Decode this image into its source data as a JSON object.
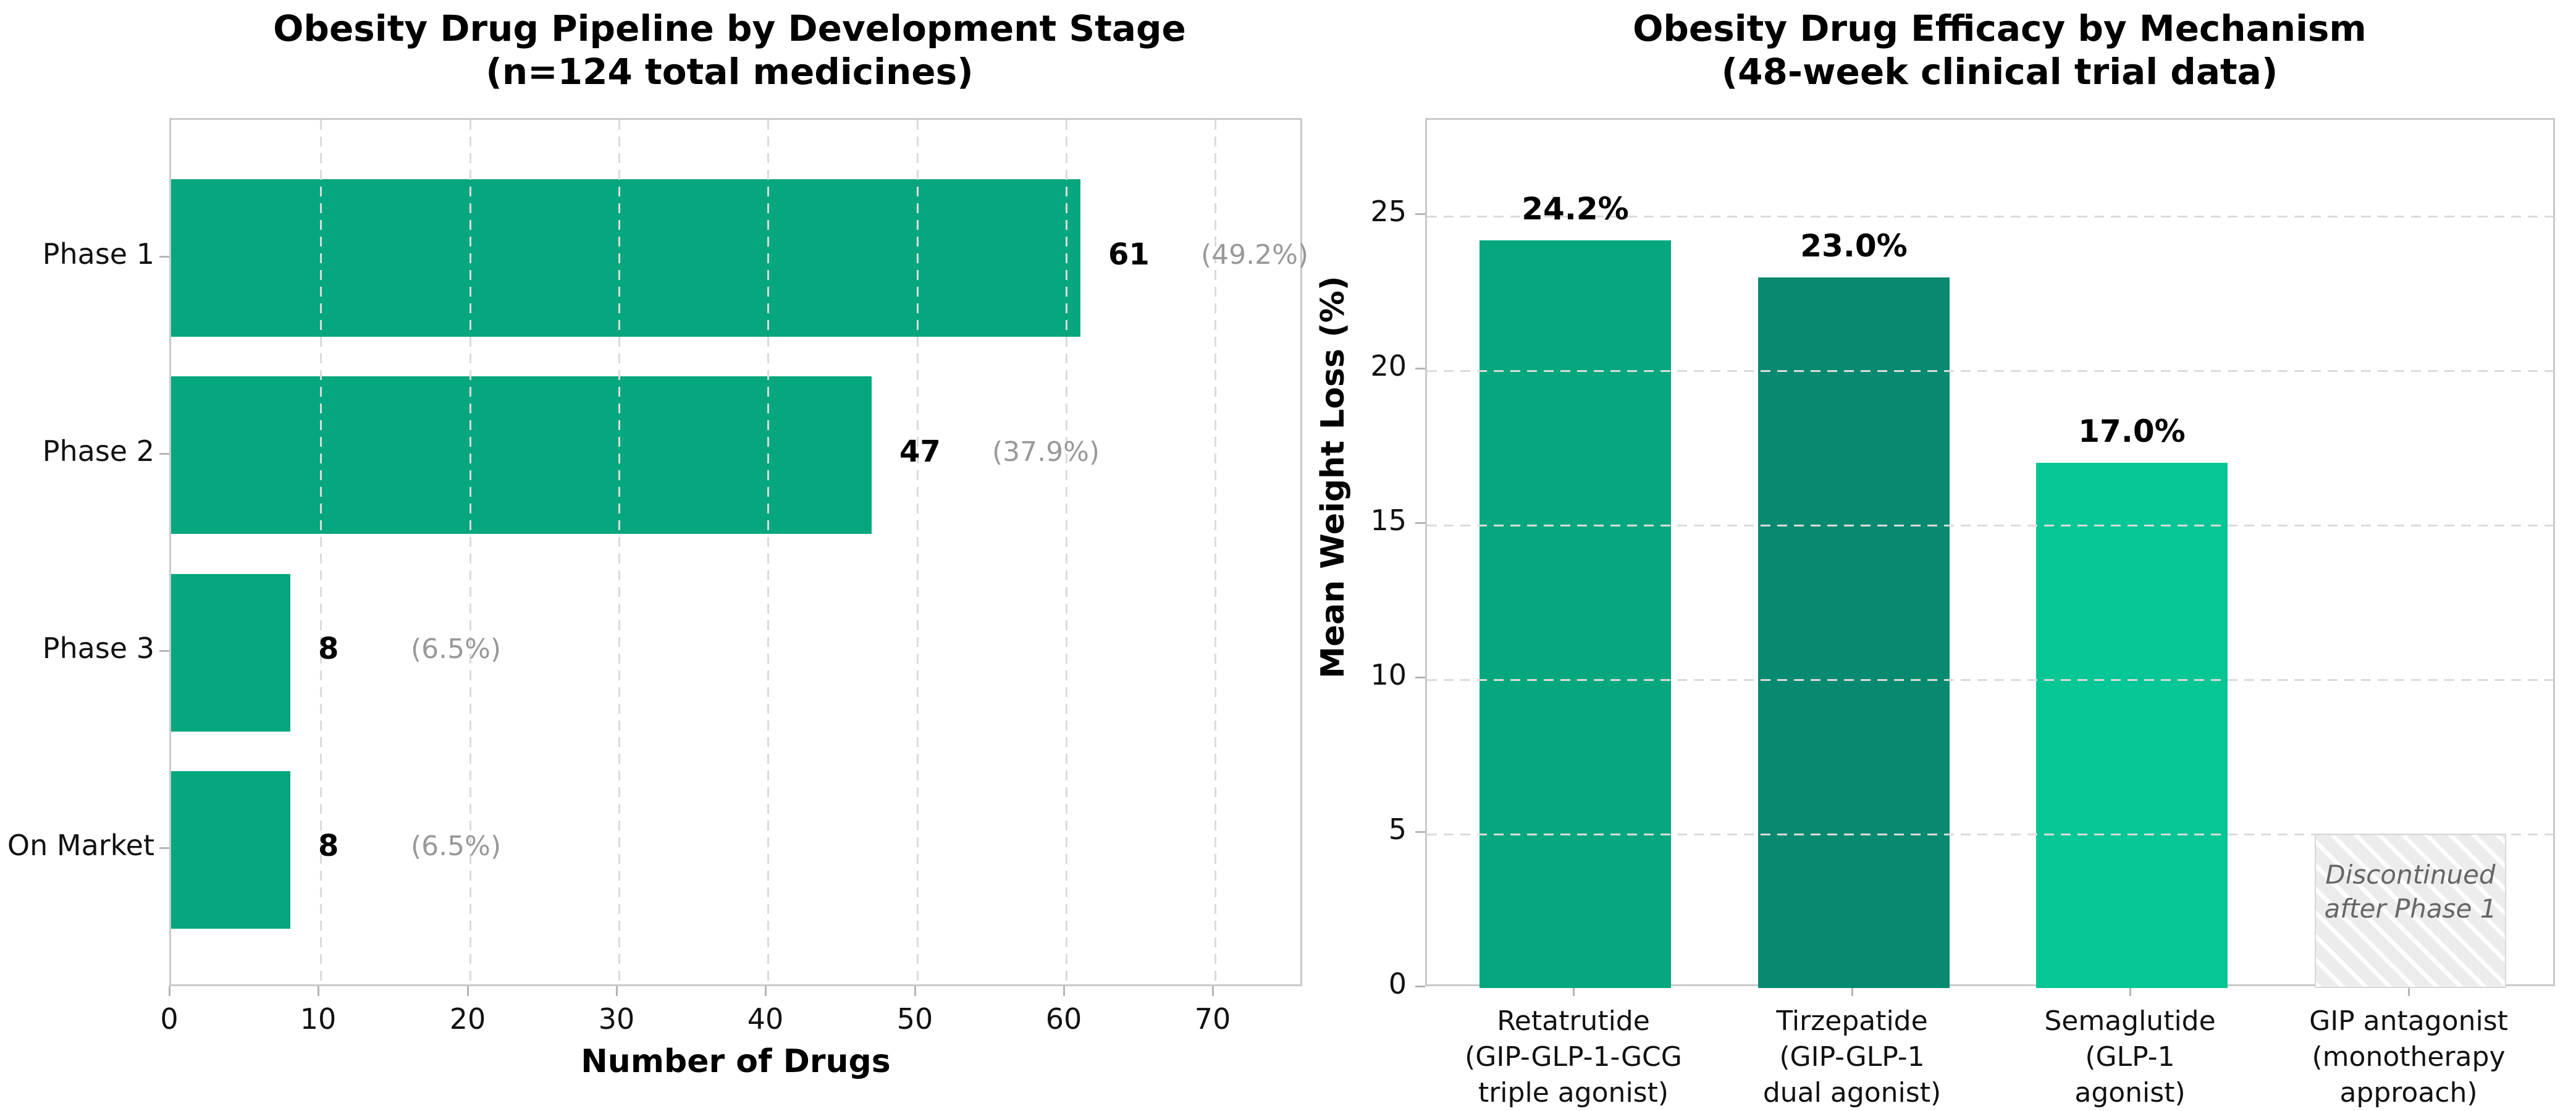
{
  "figure": {
    "background": "#ffffff"
  },
  "chart_data": [
    {
      "type": "bar",
      "orientation": "horizontal",
      "title": "Obesity Drug Pipeline by Development Stage",
      "subtitle": "(n=124 total medicines)",
      "xlabel": "Number of Drugs",
      "categories": [
        "Phase 1",
        "Phase 2",
        "Phase 3",
        "On Market"
      ],
      "values": [
        61,
        47,
        8,
        8
      ],
      "value_labels": [
        "61",
        "47",
        "8",
        "8"
      ],
      "percent_labels": [
        "(49.2%)",
        "(37.9%)",
        "(6.5%)",
        "(6.5%)"
      ],
      "x_ticks": [
        0,
        10,
        20,
        30,
        40,
        50,
        60,
        70
      ],
      "xlim": [
        0,
        76
      ],
      "grid": "vertical-dashed",
      "legend": "none",
      "bar_color": "#06A77E",
      "value_color": "#000000",
      "percent_color": "#999999"
    },
    {
      "type": "bar",
      "orientation": "vertical",
      "title": "Obesity Drug Efficacy by Mechanism",
      "subtitle": "(48-week clinical trial data)",
      "ylabel": "Mean Weight Loss (%)",
      "categories": [
        [
          "Retatrutide",
          "(GIP-GLP-1-GCG",
          "triple agonist)"
        ],
        [
          "Tirzepatide",
          "(GIP-GLP-1",
          "dual agonist)"
        ],
        [
          "Semaglutide",
          "(GLP-1",
          "agonist)"
        ],
        [
          "GIP antagonist",
          "(monotherapy",
          "approach)"
        ]
      ],
      "values": [
        24.2,
        23.0,
        17.0,
        5.0
      ],
      "value_labels": [
        "24.2%",
        "23.0%",
        "17.0%",
        ""
      ],
      "y_ticks": [
        0,
        5,
        10,
        15,
        20,
        25
      ],
      "ylim": [
        0,
        28.1
      ],
      "grid": "horizontal-dashed",
      "legend": "none",
      "bar_colors": [
        "#06A77E",
        "#088A70",
        "#05C695",
        "hatched"
      ],
      "hatched_bar_index": 3,
      "hatched_annotation": [
        "Discontinued",
        "after Phase 1"
      ],
      "annotation_color": "#666666"
    }
  ],
  "colors": {
    "grid": "#DBDBDB",
    "spine": "#C9C9C9",
    "tick": "#B5B5B5",
    "hatch_fill": "#ECECEC",
    "hatch_border": "#D8D8D8"
  }
}
